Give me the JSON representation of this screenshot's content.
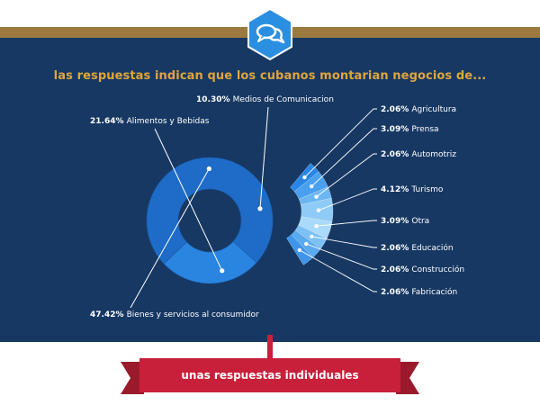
{
  "header": {
    "title": "las respuestas indican que los cubanos montarian negocios de...",
    "icon": "chat-bubbles-icon"
  },
  "footer": {
    "banner_label": "unas respuestas individuales"
  },
  "colors": {
    "navy": "#173863",
    "gold": "#9a7a3e",
    "headline": "#e0a53a",
    "badge": "#2a8fe0",
    "banner": "#c8203a"
  },
  "chart_data": {
    "type": "pie",
    "title": "las respuestas indican que los cubanos montarian negocios de...",
    "slices": [
      {
        "label": "Medios de Comunicacion",
        "value": 10.3,
        "pct": "10.30%"
      },
      {
        "label": "Alimentos y Bebidas",
        "value": 21.64,
        "pct": "21.64%"
      },
      {
        "label": "Bienes y servicios al consumidor",
        "value": 47.42,
        "pct": "47.42%"
      },
      {
        "label": "Agricultura",
        "value": 2.06,
        "pct": "2.06%"
      },
      {
        "label": "Prensa",
        "value": 3.09,
        "pct": "3.09%"
      },
      {
        "label": "Automotriz",
        "value": 2.06,
        "pct": "2.06%"
      },
      {
        "label": "Turismo",
        "value": 4.12,
        "pct": "4.12%"
      },
      {
        "label": "Otra",
        "value": 3.09,
        "pct": "3.09%"
      },
      {
        "label": "Educación",
        "value": 2.06,
        "pct": "2.06%"
      },
      {
        "label": "Construcción",
        "value": 2.06,
        "pct": "2.06%"
      },
      {
        "label": "Fabricación",
        "value": 2.06,
        "pct": "2.06%"
      }
    ]
  }
}
